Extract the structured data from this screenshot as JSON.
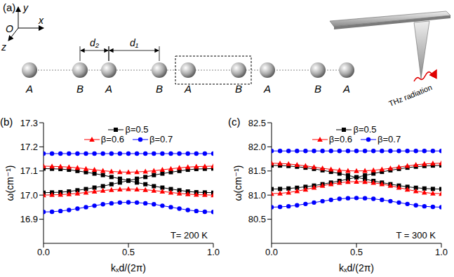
{
  "diagram": {
    "label": "(a)",
    "axes": {
      "origin": "O",
      "x": "x",
      "y": "y",
      "z": "z"
    },
    "sites": [
      "A",
      "B",
      "A",
      "B",
      "A",
      "B",
      "A",
      "B",
      "A"
    ],
    "spacings": [
      "d₂",
      "d₁"
    ],
    "source": "THz radiation"
  },
  "chart_data": [
    {
      "type": "line",
      "title": "(b)",
      "xlabel": "kₓd/(2π)",
      "ylabel": "ω(cm⁻¹)",
      "annotation": "T= 200 K",
      "legend": "upper center",
      "xlim": [
        0,
        1
      ],
      "xticks": [
        {
          "value": 0,
          "label": "0.0"
        },
        0.5,
        {
          "value": 1,
          "label": "1.0"
        }
      ],
      "ylim": [
        16.8,
        17.3
      ],
      "yticks": [
        16.9,
        {
          "value": 17,
          "label": "17.0"
        },
        17.1,
        17.2,
        17.3
      ],
      "x": [
        0,
        0.05,
        0.1,
        0.15,
        0.2,
        0.25,
        0.3,
        0.35,
        0.4,
        0.45,
        0.5,
        0.55,
        0.6,
        0.65,
        0.7,
        0.75,
        0.8,
        0.85,
        0.9,
        0.95,
        1
      ],
      "series": [
        {
          "name": "β=0.5",
          "color": "#000000",
          "marker": "square",
          "bands": [
            [
              17.11,
              17.109,
              17.108,
              17.105,
              17.1,
              17.095,
              17.089,
              17.083,
              17.075,
              17.068,
              17.06,
              17.068,
              17.075,
              17.083,
              17.089,
              17.095,
              17.1,
              17.105,
              17.108,
              17.109,
              17.11
            ],
            [
              17.01,
              17.011,
              17.012,
              17.015,
              17.02,
              17.025,
              17.031,
              17.037,
              17.045,
              17.052,
              17.06,
              17.052,
              17.045,
              17.037,
              17.031,
              17.025,
              17.02,
              17.015,
              17.012,
              17.011,
              17.01
            ]
          ]
        },
        {
          "name": "β=0.6",
          "color": "#ff0000",
          "marker": "triangle",
          "bands": [
            [
              17.12,
              17.119,
              17.118,
              17.116,
              17.113,
              17.109,
              17.105,
              17.101,
              17.098,
              17.096,
              17.095,
              17.096,
              17.098,
              17.101,
              17.105,
              17.109,
              17.113,
              17.116,
              17.118,
              17.119,
              17.12
            ],
            [
              17.0,
              17.001,
              17.002,
              17.004,
              17.007,
              17.011,
              17.015,
              17.019,
              17.022,
              17.024,
              17.025,
              17.024,
              17.022,
              17.019,
              17.015,
              17.011,
              17.007,
              17.004,
              17.002,
              17.001,
              17.0
            ]
          ]
        },
        {
          "name": "β=0.7",
          "color": "#0000ff",
          "marker": "circle",
          "bands": [
            [
              17.172,
              17.172,
              17.172,
              17.172,
              17.172,
              17.172,
              17.172,
              17.172,
              17.172,
              17.172,
              17.172,
              17.172,
              17.172,
              17.172,
              17.172,
              17.172,
              17.172,
              17.172,
              17.172,
              17.172,
              17.172
            ],
            [
              16.93,
              16.931,
              16.934,
              16.938,
              16.944,
              16.95,
              16.956,
              16.962,
              16.966,
              16.969,
              16.97,
              16.969,
              16.966,
              16.962,
              16.956,
              16.95,
              16.944,
              16.938,
              16.934,
              16.931,
              16.93
            ]
          ]
        }
      ]
    },
    {
      "type": "line",
      "title": "(c)",
      "xlabel": "kₓd/(2π)",
      "ylabel": "ω(cm⁻¹)",
      "annotation": "T = 300 K",
      "legend": "upper center",
      "xlim": [
        0,
        1
      ],
      "xticks": [
        {
          "value": 0,
          "label": "0.0"
        },
        0.5,
        {
          "value": 1,
          "label": "1.0"
        }
      ],
      "ylim": [
        80.0,
        82.5
      ],
      "yticks": [
        80.5,
        {
          "value": 81,
          "label": "81.0"
        },
        81.5,
        {
          "value": 82,
          "label": "82.0"
        },
        82.5
      ],
      "x": [
        0,
        0.05,
        0.1,
        0.15,
        0.2,
        0.25,
        0.3,
        0.35,
        0.4,
        0.45,
        0.5,
        0.55,
        0.6,
        0.65,
        0.7,
        0.75,
        0.8,
        0.85,
        0.9,
        0.95,
        1
      ],
      "series": [
        {
          "name": "β=0.5",
          "color": "#000000",
          "marker": "square",
          "bands": [
            [
              81.615,
              81.612,
              81.603,
              81.588,
              81.568,
              81.543,
              81.514,
              81.481,
              81.446,
              81.408,
              81.37,
              81.408,
              81.446,
              81.481,
              81.514,
              81.543,
              81.568,
              81.588,
              81.603,
              81.612,
              81.615
            ],
            [
              81.125,
              81.128,
              81.137,
              81.152,
              81.172,
              81.197,
              81.226,
              81.259,
              81.294,
              81.332,
              81.37,
              81.332,
              81.294,
              81.259,
              81.226,
              81.197,
              81.172,
              81.152,
              81.137,
              81.128,
              81.125
            ]
          ]
        },
        {
          "name": "β=0.6",
          "color": "#ff0000",
          "marker": "triangle",
          "bands": [
            [
              81.66,
              81.656,
              81.645,
              81.627,
              81.605,
              81.58,
              81.555,
              81.533,
              81.515,
              81.504,
              81.5,
              81.504,
              81.515,
              81.533,
              81.555,
              81.58,
              81.605,
              81.627,
              81.645,
              81.656,
              81.66
            ],
            [
              81.03,
              81.036,
              81.054,
              81.082,
              81.116,
              81.155,
              81.194,
              81.229,
              81.256,
              81.274,
              81.28,
              81.274,
              81.256,
              81.229,
              81.194,
              81.155,
              81.116,
              81.082,
              81.054,
              81.036,
              81.03
            ]
          ]
        },
        {
          "name": "β=0.7",
          "color": "#0000ff",
          "marker": "circle",
          "bands": [
            [
              81.915,
              81.915,
              81.915,
              81.915,
              81.915,
              81.915,
              81.915,
              81.915,
              81.915,
              81.915,
              81.915,
              81.915,
              81.915,
              81.915,
              81.915,
              81.915,
              81.915,
              81.915,
              81.915,
              81.915,
              81.915
            ],
            [
              80.75,
              80.755,
              80.768,
              80.789,
              80.816,
              80.845,
              80.874,
              80.901,
              80.922,
              80.935,
              80.94,
              80.935,
              80.922,
              80.901,
              80.874,
              80.845,
              80.816,
              80.789,
              80.768,
              80.755,
              80.75
            ]
          ]
        }
      ]
    }
  ]
}
